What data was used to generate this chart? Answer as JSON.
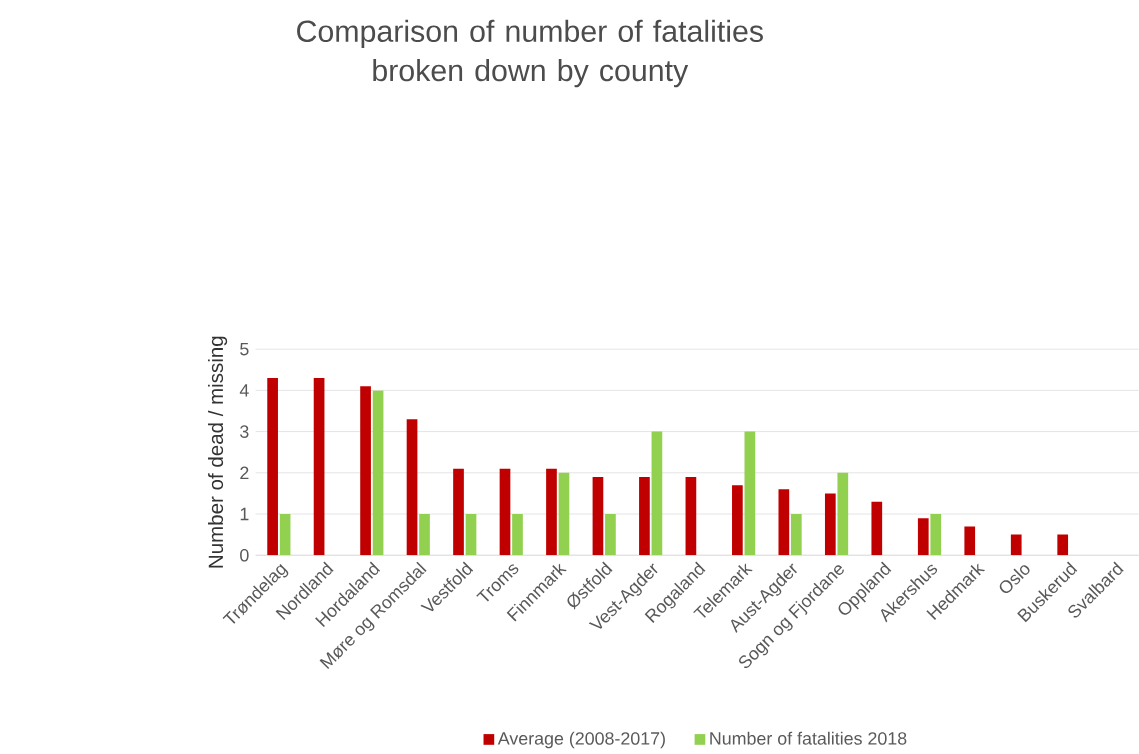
{
  "chart_data": {
    "type": "bar",
    "title": "Comparison of number of fatalities\nbroken down by county",
    "ylabel": "Number of dead / missing",
    "categories": [
      "Trøndelag",
      "Nordland",
      "Hordaland",
      "Møre og Romsdal",
      "Vestfold",
      "Troms",
      "Finnmark",
      "Østfold",
      "Vest-Agder",
      "Rogaland",
      "Telemark",
      "Aust-Agder",
      "Sogn og Fjordane",
      "Oppland",
      "Akershus",
      "Hedmark",
      "Oslo",
      "Buskerud",
      "Svalbard"
    ],
    "series": [
      {
        "name": "Average (2008-2017)",
        "color": "#c00000",
        "values": [
          4.3,
          4.3,
          4.1,
          3.3,
          2.1,
          2.1,
          2.1,
          1.9,
          1.9,
          1.9,
          1.7,
          1.6,
          1.5,
          1.3,
          0.9,
          0.7,
          0.5,
          0.5,
          0
        ]
      },
      {
        "name": "Number of fatalities 2018",
        "color": "#92d050",
        "values": [
          1,
          0,
          4,
          1,
          1,
          1,
          2,
          1,
          3,
          0,
          3,
          1,
          2,
          0,
          1,
          0,
          0,
          0,
          0
        ]
      }
    ],
    "ylim": [
      0,
      5
    ],
    "yticks": [
      0,
      1,
      2,
      3,
      4,
      5
    ],
    "grid": "y",
    "legend": "bottom"
  }
}
